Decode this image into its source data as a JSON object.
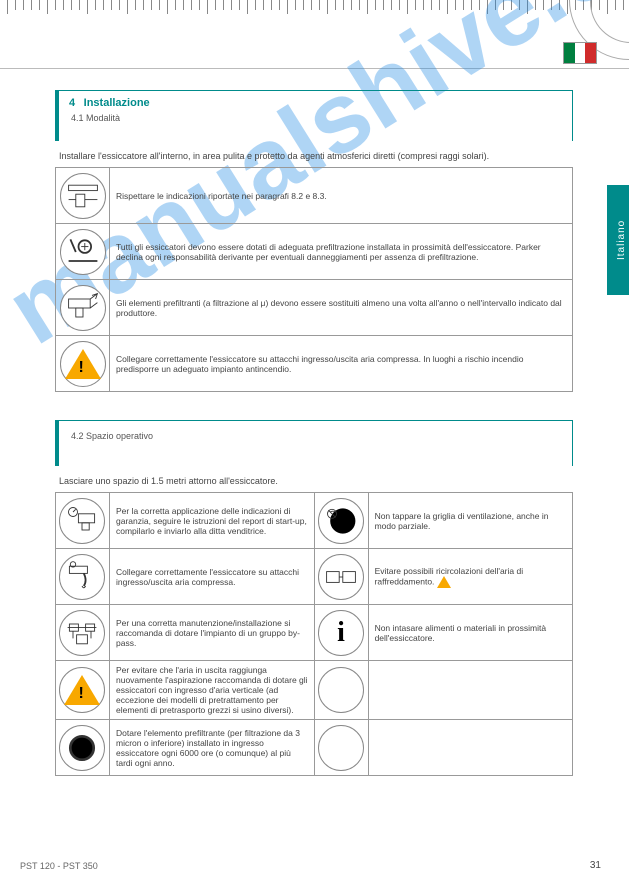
{
  "page": {
    "footer": "PST 120 - PST 350",
    "number": "31"
  },
  "flag": {
    "country": "italy-flag"
  },
  "tab": {
    "label": "Italiano"
  },
  "watermark": "manualshive.com",
  "section1": {
    "num": "4",
    "title": "Installazione",
    "sub": "4.1 Modalità",
    "lead": "Installare l'essiccatore all'interno, in area pulita e protetto da agenti atmosferici diretti (compresi raggi solari).",
    "rows": [
      {
        "icon": "diagram-spacing-icon",
        "text": "Rispettare le indicazioni riportate nei paragrafi 8.2 e 8.3."
      },
      {
        "icon": "anchor-bolt-icon",
        "text": "Tutti gli essiccatori devono essere dotati di adeguata prefiltrazione installata in prossimità dell'essiccatore.\nParker declina ogni responsabilità derivante per eventuali danneggiamenti per assenza di prefiltrazione."
      },
      {
        "icon": "inlet-outlet-icon",
        "text": "Gli elementi prefiltranti (a filtrazione al μ) devono essere sostituiti almeno una volta all'anno o nell'intervallo indicato dal produttore."
      },
      {
        "icon": "warning-icon",
        "text": "Collegare correttamente l'essiccatore su attacchi ingresso/uscita aria compressa.\nIn luoghi a rischio incendio predisporre un adeguato impianto antincendio."
      }
    ]
  },
  "section2": {
    "num": "",
    "title": "",
    "sub": "4.2 Spazio operativo",
    "lead": "Lasciare uno spazio di 1.5 metri attorno all'essiccatore.",
    "rows": [
      {
        "icon_l": "gauge-unit-icon",
        "text_l": "Per la corretta applicazione delle indicazioni di garanzia, seguire le istruzioni del report di start-up, compilarlo e inviarlo alla ditta venditrice.",
        "icon_r": "no-cap-icon",
        "text_r": "Non tappare la griglia di ventilazione, anche in modo parziale."
      },
      {
        "icon_l": "tap-drain-icon",
        "text_l": "Collegare correttamente l'essiccatore su attacchi ingresso/uscita aria compressa.",
        "icon_r": "recirculation-icon",
        "text_r": "Evitare possibili ricircolazioni dell'aria di raffreddamento.",
        "warn_r": true
      },
      {
        "icon_l": "bypass-group-icon",
        "text_l": "Per una corretta manutenzione/installazione si raccomanda di dotare l'impianto di un gruppo by-pass.",
        "icon_r": "info-icon",
        "text_r": "Non intasare alimenti o materiali in prossimità dell'essiccatore."
      },
      {
        "icon_l": "warning-icon",
        "text_l": "Per evitare che l'aria in uscita raggiunga nuovamente l'aspirazione raccomanda di dotare gli essiccatori con ingresso d'aria verticale (ad eccezione dei modelli di pretrattamento per elementi di pretrasporto grezzi si usino diversi).",
        "icon_r": "empty-icon",
        "text_r": ""
      },
      {
        "icon_l": "black-circle-icon",
        "text_l": "Dotare l'elemento prefiltrante (per filtrazione da 3 micron o inferiore) installato in ingresso essiccatore ogni 6000 ore (o comunque) al più tardi ogni anno.",
        "icon_r": "empty-icon",
        "text_r": ""
      }
    ]
  }
}
